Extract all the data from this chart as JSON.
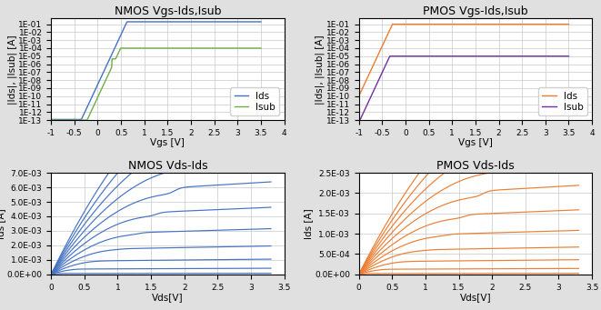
{
  "nmos_vgs_title": "NMOS Vgs-Ids,Isub",
  "pmos_vgs_title": "PMOS Vgs-Ids,Isub",
  "nmos_vds_title": "NMOS Vds-Ids",
  "pmos_vds_title": "PMOS Vds-Ids",
  "vgs_xlabel": "Vgs [V]",
  "vds_xlabel": "Vds[V]",
  "vgs_ylabel": "|Ids|, |Isub| [A]",
  "vds_ylabel_nmos": "Ids [A]",
  "vds_ylabel_pmos": "Ids [A]",
  "nmos_ids_color": "#4472C4",
  "nmos_isub_color": "#70AD47",
  "pmos_ids_color": "#ED7D31",
  "pmos_isub_color": "#7030A0",
  "nmos_vds_color": "#4472C4",
  "pmos_vds_color": "#ED7D31",
  "bg_color": "#FFFFFF",
  "outer_bg": "#E0E0E0",
  "grid_color": "#C8C8C8",
  "yticks_log": [
    1e-13,
    1e-12,
    1e-11,
    1e-10,
    1e-09,
    1e-08,
    1e-07,
    1e-06,
    1e-05,
    0.0001,
    0.001,
    0.01,
    0.1
  ],
  "ytick_log_labels": [
    "1E-13",
    "1E-12",
    "1E-11",
    "1E-10",
    "1E-09",
    "1E-08",
    "1E-07",
    "1E-06",
    "1E-05",
    "1E-04",
    "1E-03",
    "1E-02",
    "1E-01"
  ],
  "nmos_vds_ytick_labels": [
    "0.0E+00",
    "1.0E-03",
    "2.0E-03",
    "3.0E-03",
    "4.0E-03",
    "5.0E-03",
    "6.0E-03",
    "7.0E-03"
  ],
  "pmos_vds_ytick_labels": [
    "0.0E+00",
    "5.0E-04",
    "1.0E-03",
    "1.5E-03",
    "2.0E-03",
    "2.5E-03"
  ],
  "title_fontsize": 9,
  "label_fontsize": 7.5,
  "tick_fontsize": 6.5,
  "legend_fontsize": 7.5
}
